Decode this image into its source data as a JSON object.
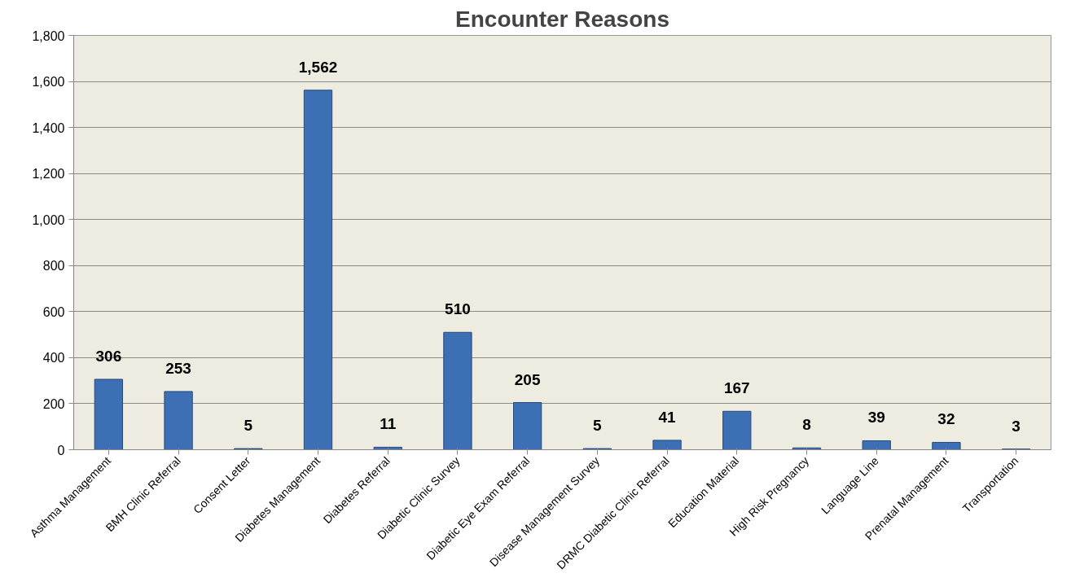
{
  "chart_data": {
    "type": "bar",
    "title": "Encounter Reasons",
    "categories": [
      "Asthma Management",
      "BMH Clinic Referral",
      "Consent Letter",
      "Diabetes Management",
      "Diabetes Referral",
      "Diabetic Clinic Survey",
      "Diabetic Eye Exam Referral",
      "Disease Management Survey",
      "DRMC Diabetic Clinic Referral",
      "Education Material",
      "High Risk Pregnancy",
      "Language Line",
      "Prenatal Management",
      "Transportation"
    ],
    "values": [
      306,
      253,
      5,
      1562,
      11,
      510,
      205,
      5,
      41,
      167,
      8,
      39,
      32,
      3
    ],
    "color": "#3c6fb4",
    "ylim": [
      0,
      1800
    ],
    "yticks": [
      0,
      200,
      400,
      600,
      800,
      {
        "value": 1000,
        "label": "1,000"
      },
      {
        "value": 1200,
        "label": "1,200"
      },
      {
        "value": 1400,
        "label": "1,400"
      },
      {
        "value": 1600,
        "label": "1,600"
      },
      {
        "value": 1800,
        "label": "1,800"
      }
    ],
    "grid": "y",
    "value_labels": [
      "306",
      "253",
      "5",
      "1,562",
      "11",
      "510",
      "205",
      "5",
      "41",
      "167",
      "8",
      "39",
      "32",
      "3"
    ]
  }
}
